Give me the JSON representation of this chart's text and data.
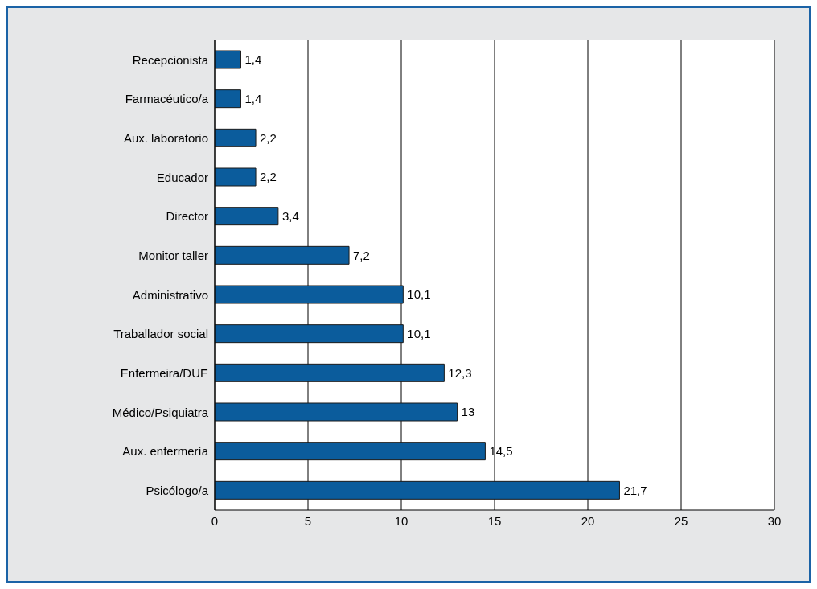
{
  "chart_data": {
    "type": "bar",
    "orientation": "horizontal",
    "categories": [
      "Recepcionista",
      "Farmacéutico/a",
      "Aux. laboratorio",
      "Educador",
      "Director",
      "Monitor taller",
      "Administrativo",
      "Traballador social",
      "Enfermeira/DUE",
      "Médico/Psiquiatra",
      "Aux. enfermería",
      "Psicólogo/a"
    ],
    "values": [
      1.4,
      1.4,
      2.2,
      2.2,
      3.4,
      7.2,
      10.1,
      10.1,
      12.3,
      13,
      14.5,
      21.7
    ],
    "value_labels": [
      "1,4",
      "1,4",
      "2,2",
      "2,2",
      "3,4",
      "7,2",
      "10,1",
      "10,1",
      "12,3",
      "13",
      "14,5",
      "21,7"
    ],
    "color": "#0b5c9c",
    "xlim": [
      0,
      30
    ],
    "xticks": [
      0,
      5,
      10,
      15,
      20,
      25,
      30
    ],
    "grid": "x"
  }
}
